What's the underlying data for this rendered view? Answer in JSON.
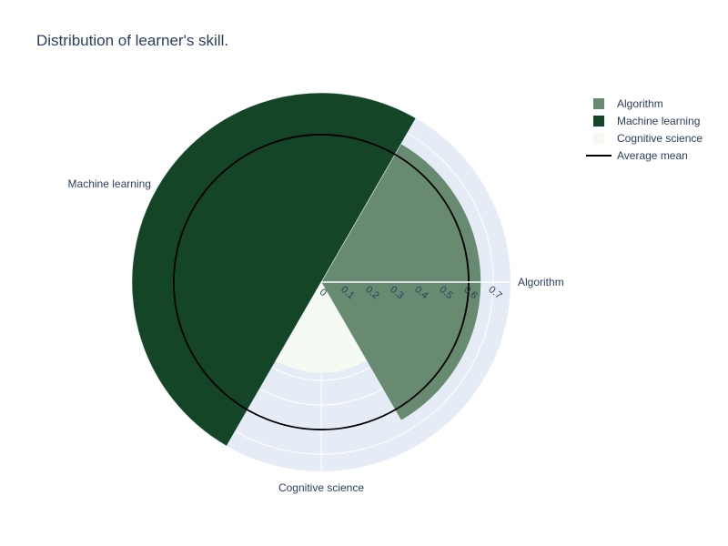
{
  "title": "Distribution of learner's skill.",
  "colors": {
    "polar_bg": "#e5ecf6",
    "grid": "#ffffff",
    "text": "#2a3f5f",
    "mean_line": "#000000"
  },
  "chart_data": {
    "type": "barpolar",
    "title": "Distribution of learner's skill.",
    "categories": [
      "Algorithm",
      "Machine learning",
      "Cognitive science"
    ],
    "series": [
      {
        "name": "Algorithm",
        "category": "Algorithm",
        "value": 0.65,
        "theta_center": 0,
        "width": 120,
        "color": "#678a70"
      },
      {
        "name": "Machine learning",
        "category": "Machine learning",
        "value": 0.77,
        "theta_center": 150,
        "width": 180,
        "color": "#144527"
      },
      {
        "name": "Cognitive science",
        "category": "Cognitive science",
        "value": 0.37,
        "theta_center": 270,
        "width": 60,
        "color": "#f5fbf2"
      }
    ],
    "mean_line": {
      "name": "Average mean",
      "value": 0.6,
      "color": "#000000"
    },
    "radial_axis": {
      "range": [
        0,
        0.77
      ],
      "ticks": [
        0,
        0.1,
        0.2,
        0.3,
        0.4,
        0.5,
        0.6,
        0.7
      ],
      "tick_labels": [
        "0",
        "0.1",
        "0.2",
        "0.3",
        "0.4",
        "0.5",
        "0.6",
        "0.7"
      ]
    },
    "angular_axis": {
      "ticks_deg": [
        0,
        150,
        270
      ],
      "tick_labels": [
        "Algorithm",
        "Machine learning",
        "Cognitive science"
      ]
    },
    "legend": {
      "placement": "top-right",
      "items": [
        {
          "label": "Algorithm",
          "kind": "square",
          "color": "#678a70"
        },
        {
          "label": "Machine learning",
          "kind": "square",
          "color": "#144527"
        },
        {
          "label": "Cognitive science",
          "kind": "square",
          "color": "#f5fbf2"
        },
        {
          "label": "Average mean",
          "kind": "line",
          "color": "#000000"
        }
      ]
    }
  }
}
